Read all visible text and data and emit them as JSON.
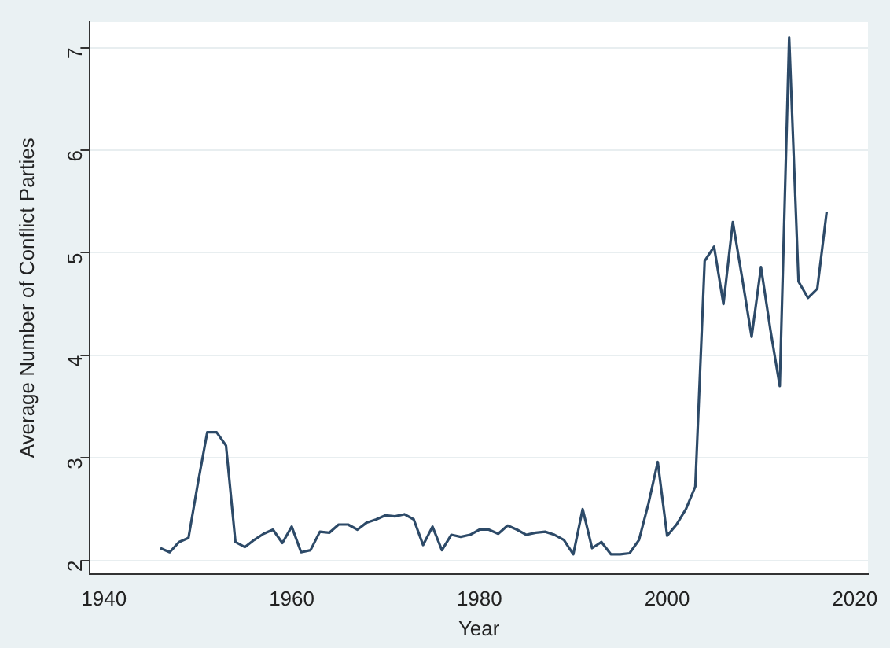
{
  "chart_data": {
    "type": "line",
    "xlabel": "Year",
    "ylabel": "Average Number of Conflict Parties",
    "x": [
      1946,
      1947,
      1948,
      1949,
      1950,
      1951,
      1952,
      1953,
      1954,
      1955,
      1956,
      1957,
      1958,
      1959,
      1960,
      1961,
      1962,
      1963,
      1964,
      1965,
      1966,
      1967,
      1968,
      1969,
      1970,
      1971,
      1972,
      1973,
      1974,
      1975,
      1976,
      1977,
      1978,
      1979,
      1980,
      1981,
      1982,
      1983,
      1984,
      1985,
      1986,
      1987,
      1988,
      1989,
      1990,
      1991,
      1992,
      1993,
      1994,
      1995,
      1996,
      1997,
      1998,
      1999,
      2000,
      2001,
      2002,
      2003,
      2004,
      2005,
      2006,
      2007,
      2008,
      2009,
      2010,
      2011,
      2012,
      2013,
      2014,
      2015,
      2016,
      2017
    ],
    "series": [
      {
        "color": "#2d4a68",
        "values": [
          2.12,
          2.08,
          2.18,
          2.22,
          2.75,
          3.25,
          3.25,
          3.12,
          2.18,
          2.13,
          2.2,
          2.26,
          2.3,
          2.17,
          2.33,
          2.08,
          2.1,
          2.28,
          2.27,
          2.35,
          2.35,
          2.3,
          2.37,
          2.4,
          2.44,
          2.43,
          2.45,
          2.4,
          2.15,
          2.33,
          2.1,
          2.25,
          2.23,
          2.25,
          2.3,
          2.3,
          2.26,
          2.34,
          2.3,
          2.25,
          2.27,
          2.28,
          2.25,
          2.2,
          2.06,
          2.5,
          2.12,
          2.18,
          2.06,
          2.06,
          2.07,
          2.2,
          2.55,
          2.96,
          2.24,
          2.35,
          2.5,
          2.72,
          4.92,
          5.06,
          4.5,
          5.3,
          4.75,
          4.18,
          4.86,
          4.25,
          3.7,
          7.1,
          4.72,
          4.56,
          4.65,
          5.4
        ]
      }
    ],
    "xlim": [
      1938.5,
      2021.4
    ],
    "xticks": [
      1940,
      1960,
      1980,
      2000,
      2020
    ],
    "ylim": [
      1.87,
      7.25
    ],
    "yticks": [
      2,
      3,
      4,
      5,
      6,
      7
    ],
    "grid": "y",
    "legend": false,
    "marker": "none",
    "line_style": "solid"
  }
}
